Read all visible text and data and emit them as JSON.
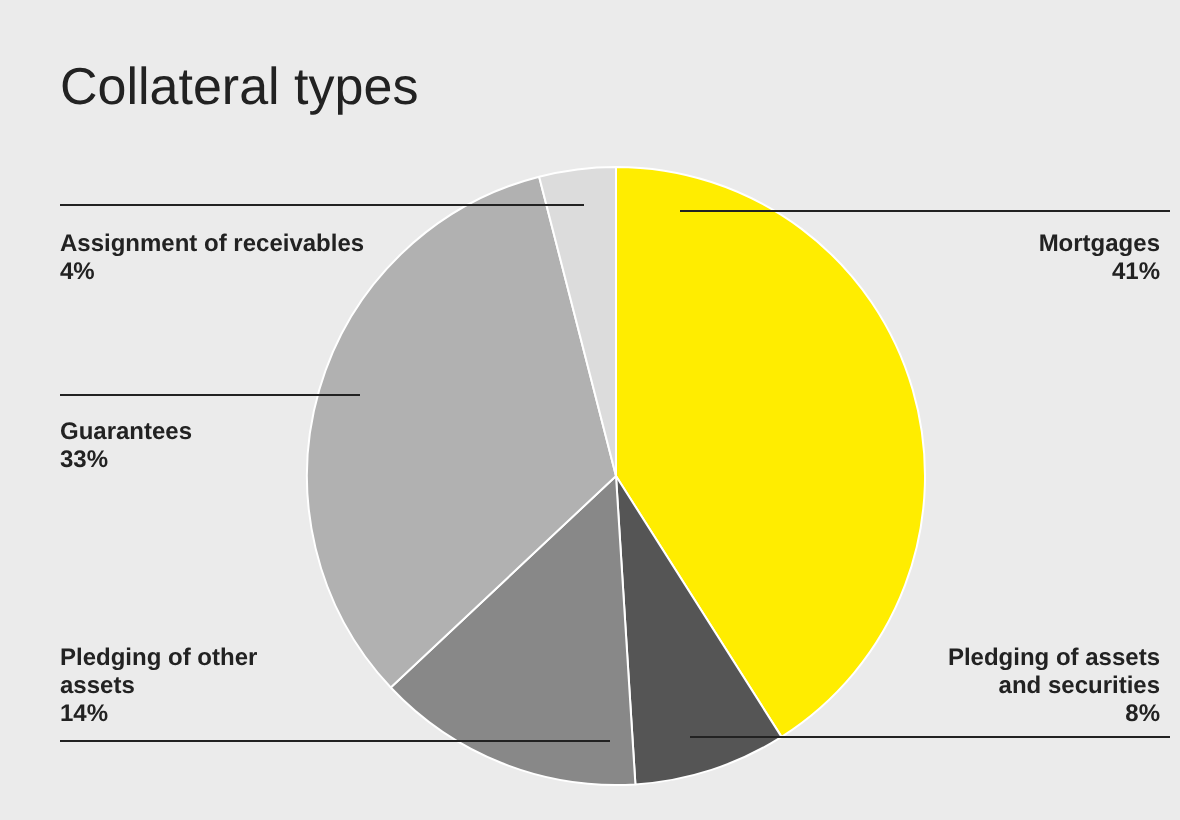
{
  "chart_data": {
    "type": "pie",
    "title": "Collateral types",
    "categories": [
      "Mortgages",
      "Pledging of assets and securities",
      "Pledging of other assets",
      "Guarantees",
      "Assignment of receivables"
    ],
    "values": [
      41,
      8,
      14,
      33,
      4
    ],
    "value_labels": [
      "41%",
      "8%",
      "14%",
      "33%",
      "4%"
    ],
    "colors": [
      "#ffed00",
      "#555555",
      "#888888",
      "#b1b1b1",
      "#dcdcdc"
    ],
    "legend": false
  }
}
